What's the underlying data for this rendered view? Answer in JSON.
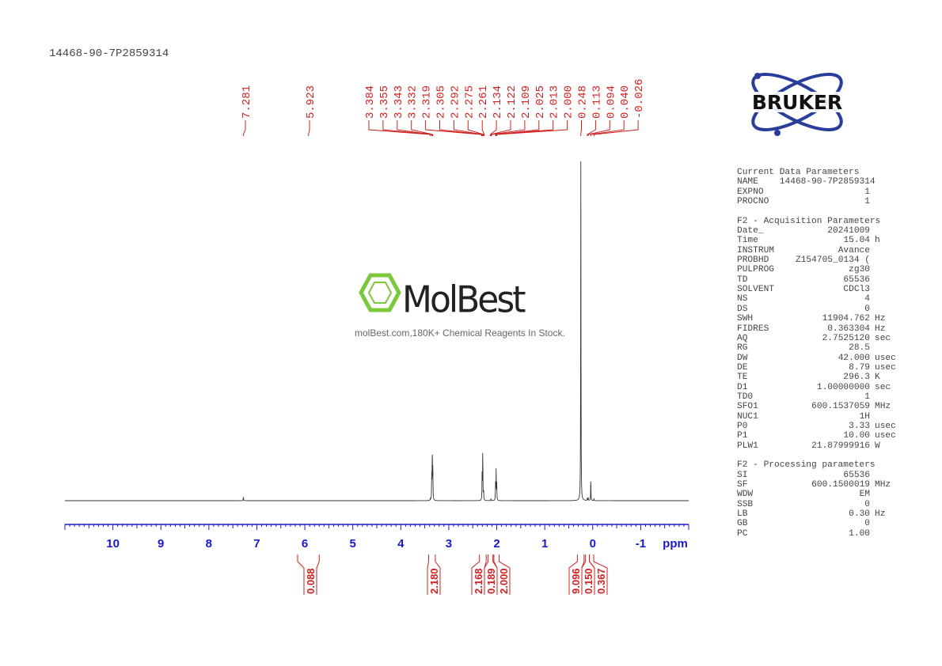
{
  "sample_name": "14468-90-7P2859314",
  "logo": {
    "text": "BRUKER"
  },
  "watermark": {
    "brand": "MolBest",
    "tagline": "molBest.com,180K+ Chemical Reagents In Stock."
  },
  "parameters": {
    "current": {
      "title": "Current Data Parameters",
      "rows": [
        {
          "k": "NAME",
          "v": "14468-90-7P2859314",
          "u": ""
        },
        {
          "k": "EXPNO",
          "v": "1",
          "u": ""
        },
        {
          "k": "PROCNO",
          "v": "1",
          "u": ""
        }
      ]
    },
    "acquisition": {
      "title": "F2 - Acquisition Parameters",
      "rows": [
        {
          "k": "Date_",
          "v": "20241009",
          "u": ""
        },
        {
          "k": "Time",
          "v": "15.04",
          "u": "h"
        },
        {
          "k": "INSTRUM",
          "v": "Avance",
          "u": ""
        },
        {
          "k": "PROBHD",
          "v": "Z154705_0134 (",
          "u": ""
        },
        {
          "k": "PULPROG",
          "v": "zg30",
          "u": ""
        },
        {
          "k": "TD",
          "v": "65536",
          "u": ""
        },
        {
          "k": "SOLVENT",
          "v": "CDCl3",
          "u": ""
        },
        {
          "k": "NS",
          "v": "4",
          "u": ""
        },
        {
          "k": "DS",
          "v": "0",
          "u": ""
        },
        {
          "k": "SWH",
          "v": "11904.762",
          "u": "Hz"
        },
        {
          "k": "FIDRES",
          "v": "0.363304",
          "u": "Hz"
        },
        {
          "k": "AQ",
          "v": "2.7525120",
          "u": "sec"
        },
        {
          "k": "RG",
          "v": "28.5",
          "u": ""
        },
        {
          "k": "DW",
          "v": "42.000",
          "u": "usec"
        },
        {
          "k": "DE",
          "v": "8.79",
          "u": "usec"
        },
        {
          "k": "TE",
          "v": "296.3",
          "u": "K"
        },
        {
          "k": "D1",
          "v": "1.00000000",
          "u": "sec"
        },
        {
          "k": "TD0",
          "v": "1",
          "u": ""
        },
        {
          "k": "SFO1",
          "v": "600.1537059",
          "u": "MHz"
        },
        {
          "k": "NUC1",
          "v": "1H",
          "u": ""
        },
        {
          "k": "P0",
          "v": "3.33",
          "u": "usec"
        },
        {
          "k": "P1",
          "v": "10.00",
          "u": "usec"
        },
        {
          "k": "PLW1",
          "v": "21.87999916",
          "u": "W"
        }
      ]
    },
    "processing": {
      "title": "F2 - Processing parameters",
      "rows": [
        {
          "k": "SI",
          "v": "65536",
          "u": ""
        },
        {
          "k": "SF",
          "v": "600.1500019",
          "u": "MHz"
        },
        {
          "k": "WDW",
          "v": "EM",
          "u": ""
        },
        {
          "k": "SSB",
          "v": "0",
          "u": ""
        },
        {
          "k": "LB",
          "v": "0.30",
          "u": "Hz"
        },
        {
          "k": "GB",
          "v": "0",
          "u": ""
        },
        {
          "k": "PC",
          "v": "1.00",
          "u": ""
        }
      ]
    }
  },
  "chart_data": {
    "type": "line",
    "xlabel": "ppm",
    "xlim": [
      11.0,
      -2.0
    ],
    "x_ticks": [
      10,
      9,
      8,
      7,
      6,
      5,
      4,
      3,
      2,
      1,
      0,
      -1
    ],
    "x_tick_labels": [
      "10",
      "9",
      "8",
      "7",
      "6",
      "5",
      "4",
      "3",
      "2",
      "1",
      "0",
      "-1"
    ],
    "grid": false,
    "axis_color": "#1a1acc",
    "label_color": "#d02020",
    "peak_labels": [
      "7.281",
      "5.923",
      "3.384",
      "3.355",
      "3.343",
      "3.332",
      "2.319",
      "2.305",
      "2.292",
      "2.275",
      "2.261",
      "2.134",
      "2.122",
      "2.109",
      "2.025",
      "2.013",
      "2.000",
      "0.248",
      "0.113",
      "0.094",
      "0.040",
      "-0.026"
    ],
    "peaks": [
      {
        "ppm": 7.281,
        "rel_intensity": 0.012
      },
      {
        "ppm": 3.355,
        "rel_intensity": 0.08
      },
      {
        "ppm": 3.343,
        "rel_intensity": 0.155
      },
      {
        "ppm": 3.332,
        "rel_intensity": 0.09
      },
      {
        "ppm": 3.384,
        "rel_intensity": 0.005
      },
      {
        "ppm": 2.305,
        "rel_intensity": 0.08
      },
      {
        "ppm": 2.292,
        "rel_intensity": 0.155
      },
      {
        "ppm": 2.275,
        "rel_intensity": 0.03
      },
      {
        "ppm": 2.122,
        "rel_intensity": 0.006
      },
      {
        "ppm": 2.025,
        "rel_intensity": 0.05
      },
      {
        "ppm": 2.013,
        "rel_intensity": 0.088
      },
      {
        "ppm": 2.0,
        "rel_intensity": 0.05
      },
      {
        "ppm": 0.248,
        "rel_intensity": 1.0
      },
      {
        "ppm": 0.113,
        "rel_intensity": 0.008
      },
      {
        "ppm": 0.094,
        "rel_intensity": 0.01
      },
      {
        "ppm": 0.04,
        "rel_intensity": 0.067
      },
      {
        "ppm": -0.026,
        "rel_intensity": 0.006
      }
    ],
    "integrals": [
      {
        "from": 6.15,
        "to": 5.7,
        "value": "0.088"
      },
      {
        "from": 3.42,
        "to": 3.28,
        "value": "2.180"
      },
      {
        "from": 2.36,
        "to": 2.22,
        "value": "2.168"
      },
      {
        "from": 2.18,
        "to": 2.08,
        "value": "0.189"
      },
      {
        "from": 2.06,
        "to": 1.95,
        "value": "2.000"
      },
      {
        "from": 0.32,
        "to": 0.18,
        "value": "9.096"
      },
      {
        "from": 0.15,
        "to": 0.07,
        "value": "0.150"
      },
      {
        "from": 0.07,
        "to": -0.02,
        "value": "0.367"
      }
    ]
  }
}
